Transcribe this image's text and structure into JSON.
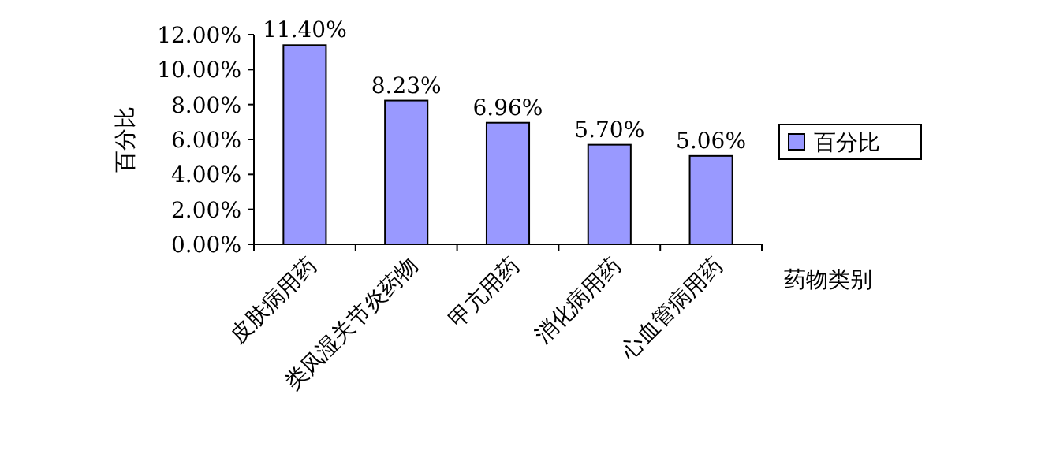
{
  "chart_data": {
    "type": "bar",
    "ylabel": "百分比",
    "xlabel": "药物类别",
    "categories": [
      "皮肤病用药",
      "类风湿关节炎药物",
      "甲亢用药",
      "消化病用药",
      "心血管病用药"
    ],
    "series": [
      {
        "name": "百分比",
        "color": "#9999ff",
        "values": [
          11.4,
          8.23,
          6.96,
          5.7,
          5.06
        ],
        "value_labels": [
          "11.40%",
          "8.23%",
          "6.96%",
          "5.70%",
          "5.06%"
        ]
      }
    ],
    "ylim": [
      0,
      12
    ],
    "yticks": [
      {
        "value": 0,
        "label": "0.00%"
      },
      {
        "value": 2,
        "label": "2.00%"
      },
      {
        "value": 4,
        "label": "4.00%"
      },
      {
        "value": 6,
        "label": "6.00%"
      },
      {
        "value": 8,
        "label": "8.00%"
      },
      {
        "value": 10,
        "label": "10.00%"
      },
      {
        "value": 12,
        "label": "12.00%"
      }
    ],
    "grid": false,
    "legend": "right"
  }
}
